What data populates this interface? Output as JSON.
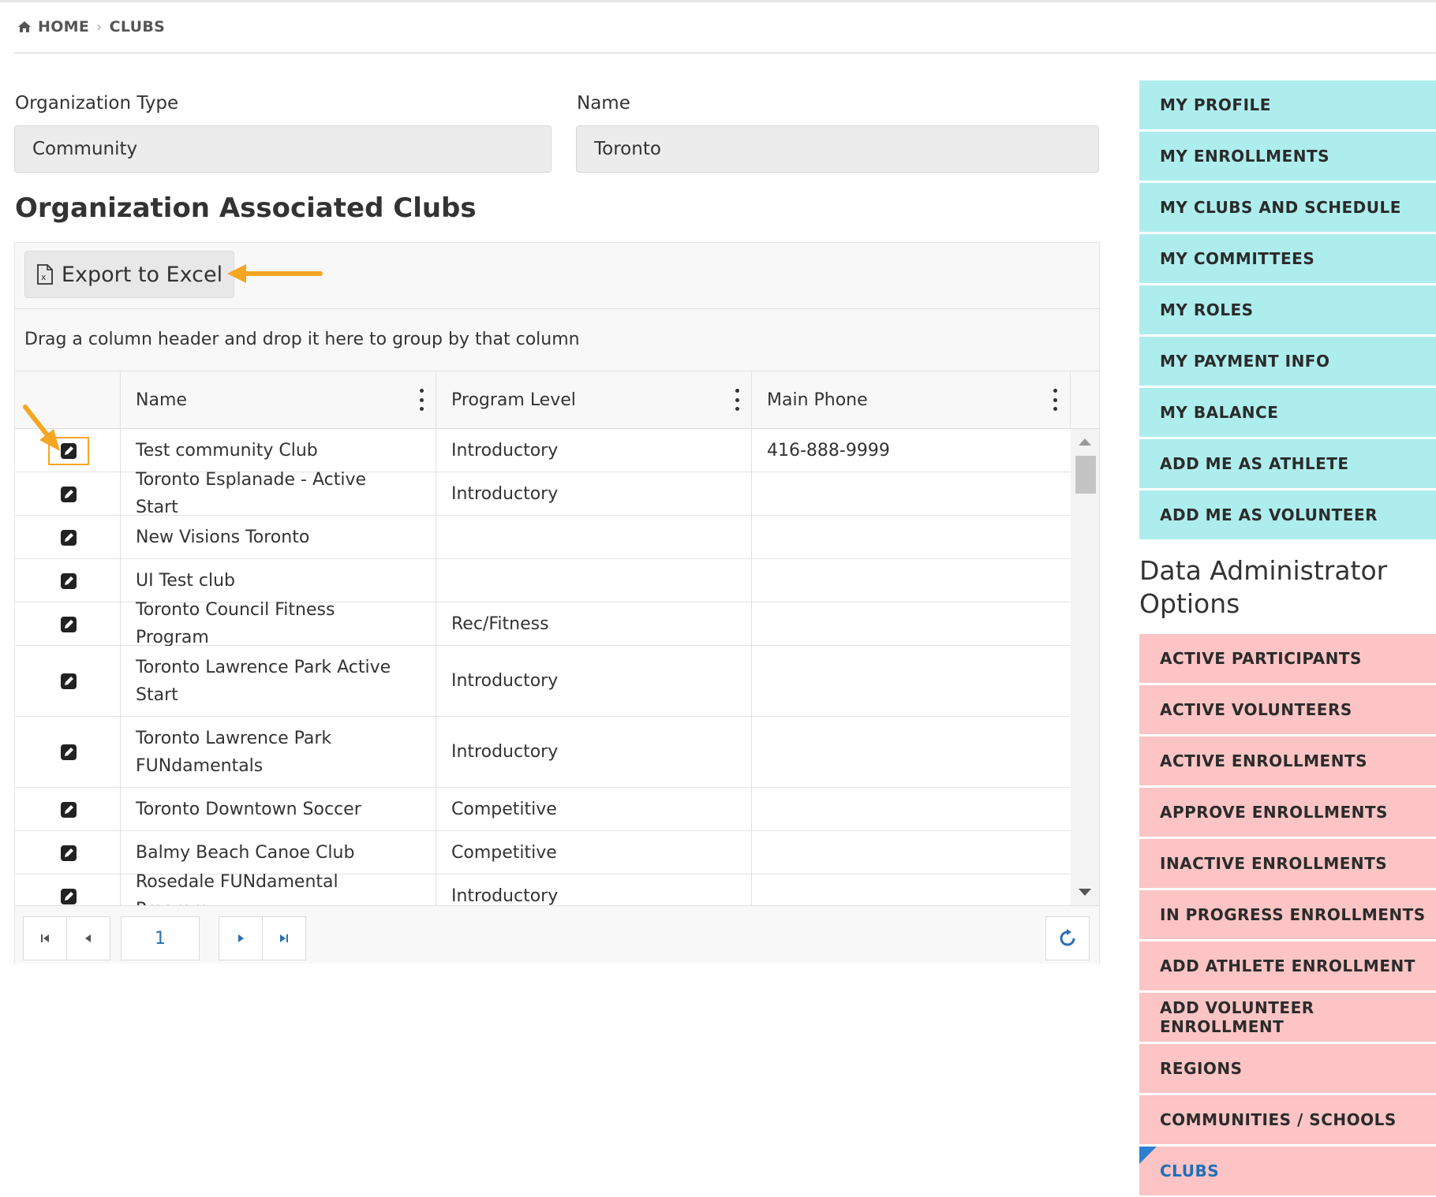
{
  "breadcrumb": {
    "home": "HOME",
    "current": "CLUBS"
  },
  "filters": {
    "org_type_label": "Organization Type",
    "org_type_value": "Community",
    "name_label": "Name",
    "name_value": "Toronto"
  },
  "section_title": "Organization Associated Clubs",
  "grid": {
    "export_label": "Export to Excel",
    "group_hint": "Drag a column header and drop it here to group by that column",
    "columns": [
      "Name",
      "Program Level",
      "Main Phone"
    ],
    "rows": [
      {
        "name": "Test community Club",
        "level": "Introductory",
        "phone": "416-888-9999"
      },
      {
        "name": "Toronto Esplanade - Active Start",
        "level": "Introductory",
        "phone": ""
      },
      {
        "name": "New Visions Toronto",
        "level": "",
        "phone": ""
      },
      {
        "name": "UI Test club",
        "level": "",
        "phone": ""
      },
      {
        "name": "Toronto Council Fitness Program",
        "level": "Rec/Fitness",
        "phone": ""
      },
      {
        "name": "Toronto Lawrence Park Active Start",
        "level": "Introductory",
        "phone": ""
      },
      {
        "name": "Toronto Lawrence Park FUNdamentals",
        "level": "Introductory",
        "phone": ""
      },
      {
        "name": "Toronto Downtown Soccer",
        "level": "Competitive",
        "phone": ""
      },
      {
        "name": "Balmy Beach Canoe Club",
        "level": "Competitive",
        "phone": ""
      },
      {
        "name": "Rosedale FUNdamental Program",
        "level": "Introductory",
        "phone": ""
      }
    ],
    "page_number": "1"
  },
  "sidebar": {
    "member_items": [
      "MY PROFILE",
      "MY ENROLLMENTS",
      "MY CLUBS AND SCHEDULE",
      "MY COMMITTEES",
      "MY ROLES",
      "MY PAYMENT INFO",
      "MY BALANCE",
      "ADD ME AS ATHLETE",
      "ADD ME AS VOLUNTEER"
    ],
    "admin_heading": "Data Administrator Options",
    "admin_items": [
      "ACTIVE PARTICIPANTS",
      "ACTIVE VOLUNTEERS",
      "ACTIVE ENROLLMENTS",
      "APPROVE ENROLLMENTS",
      "INACTIVE ENROLLMENTS",
      "IN PROGRESS ENROLLMENTS",
      "ADD ATHLETE ENROLLMENT",
      "ADD VOLUNTEER ENROLLMENT",
      "REGIONS",
      "COMMUNITIES / SCHOOLS",
      "CLUBS"
    ],
    "active_item": "CLUBS"
  },
  "colors": {
    "member_bg": "#aeeded",
    "admin_bg": "#fcc4c4",
    "active_text": "#1f6fb8",
    "annotation": "#f5a623",
    "link": "#2a6fb5"
  },
  "icons": {
    "home": "home-icon",
    "excel": "excel-file-icon",
    "edit": "edit-pencil-icon",
    "refresh": "refresh-icon"
  }
}
